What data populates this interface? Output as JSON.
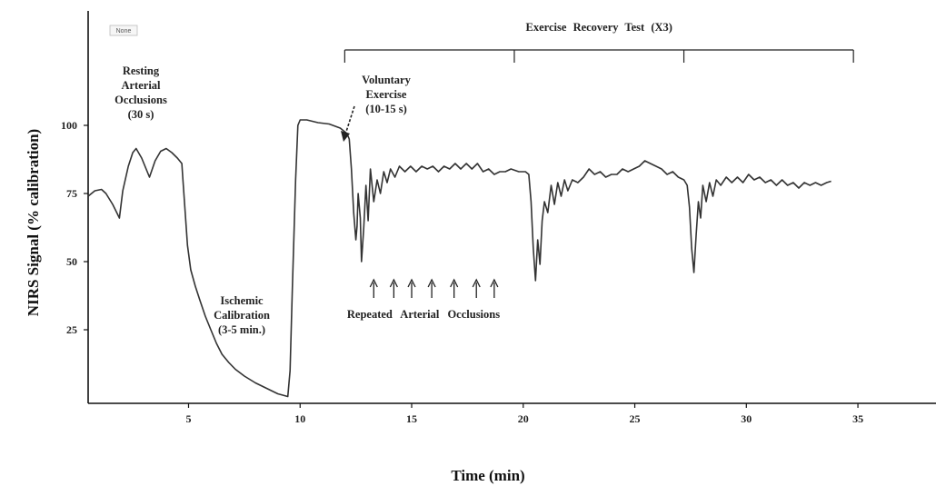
{
  "chart_data": {
    "type": "line",
    "xlabel": "Time (min)",
    "ylabel": "NIRS Signal (% calibration)",
    "x_ticks": [
      5,
      10,
      15,
      20,
      25,
      30,
      35
    ],
    "y_ticks": [
      25,
      50,
      75,
      100
    ],
    "xlim": [
      0.5,
      38.5
    ],
    "ylim": [
      -2,
      142
    ],
    "legend_box_text": "None",
    "series": [
      {
        "points": [
          [
            0.5,
            74
          ],
          [
            0.8,
            76
          ],
          [
            1.1,
            76.5
          ],
          [
            1.3,
            75
          ],
          [
            1.6,
            71
          ],
          [
            1.9,
            66
          ],
          [
            2.05,
            76
          ],
          [
            2.3,
            85
          ],
          [
            2.5,
            90
          ],
          [
            2.65,
            91.5
          ],
          [
            2.9,
            88
          ],
          [
            3.1,
            84
          ],
          [
            3.25,
            81
          ],
          [
            3.5,
            87
          ],
          [
            3.75,
            90.5
          ],
          [
            4.0,
            91.5
          ],
          [
            4.25,
            90
          ],
          [
            4.5,
            88
          ],
          [
            4.7,
            86
          ],
          [
            4.75,
            80
          ],
          [
            4.85,
            68
          ],
          [
            4.95,
            56
          ],
          [
            5.1,
            47
          ],
          [
            5.3,
            41
          ],
          [
            5.5,
            36
          ],
          [
            5.75,
            30
          ],
          [
            6.0,
            25
          ],
          [
            6.25,
            20
          ],
          [
            6.5,
            16
          ],
          [
            6.8,
            13
          ],
          [
            7.1,
            10.5
          ],
          [
            7.5,
            8
          ],
          [
            8.0,
            5.5
          ],
          [
            8.5,
            3.5
          ],
          [
            9.0,
            1.5
          ],
          [
            9.45,
            0.5
          ],
          [
            9.55,
            10
          ],
          [
            9.65,
            40
          ],
          [
            9.8,
            80
          ],
          [
            9.9,
            100
          ],
          [
            10.0,
            102
          ],
          [
            10.3,
            102
          ],
          [
            10.8,
            101
          ],
          [
            11.3,
            100.5
          ],
          [
            11.8,
            99
          ],
          [
            12.1,
            97
          ],
          [
            12.2,
            95
          ],
          [
            12.3,
            84
          ],
          [
            12.4,
            68
          ],
          [
            12.5,
            58
          ],
          [
            12.55,
            63
          ],
          [
            12.6,
            75
          ],
          [
            12.7,
            66
          ],
          [
            12.75,
            50
          ],
          [
            12.85,
            62
          ],
          [
            12.95,
            78
          ],
          [
            13.05,
            65
          ],
          [
            13.15,
            84
          ],
          [
            13.3,
            72
          ],
          [
            13.45,
            80
          ],
          [
            13.6,
            75
          ],
          [
            13.75,
            83
          ],
          [
            13.9,
            79
          ],
          [
            14.05,
            84
          ],
          [
            14.25,
            81
          ],
          [
            14.45,
            85
          ],
          [
            14.7,
            83
          ],
          [
            14.95,
            85
          ],
          [
            15.2,
            83
          ],
          [
            15.45,
            85
          ],
          [
            15.7,
            84
          ],
          [
            15.95,
            85
          ],
          [
            16.2,
            83
          ],
          [
            16.45,
            85
          ],
          [
            16.7,
            84
          ],
          [
            16.95,
            86
          ],
          [
            17.2,
            84
          ],
          [
            17.45,
            86
          ],
          [
            17.7,
            84
          ],
          [
            17.95,
            86
          ],
          [
            18.2,
            83
          ],
          [
            18.45,
            84
          ],
          [
            18.7,
            82
          ],
          [
            18.95,
            83
          ],
          [
            19.2,
            83
          ],
          [
            19.45,
            84
          ],
          [
            19.8,
            83
          ],
          [
            20.1,
            83
          ],
          [
            20.25,
            82
          ],
          [
            20.35,
            72
          ],
          [
            20.45,
            55
          ],
          [
            20.55,
            43
          ],
          [
            20.65,
            58
          ],
          [
            20.75,
            49
          ],
          [
            20.85,
            65
          ],
          [
            20.95,
            72
          ],
          [
            21.1,
            68
          ],
          [
            21.25,
            78
          ],
          [
            21.4,
            71
          ],
          [
            21.55,
            79
          ],
          [
            21.7,
            74
          ],
          [
            21.85,
            80
          ],
          [
            22.0,
            76
          ],
          [
            22.2,
            80
          ],
          [
            22.45,
            79
          ],
          [
            22.7,
            81
          ],
          [
            22.95,
            84
          ],
          [
            23.2,
            82
          ],
          [
            23.45,
            83
          ],
          [
            23.7,
            81
          ],
          [
            23.95,
            82
          ],
          [
            24.2,
            82
          ],
          [
            24.45,
            84
          ],
          [
            24.7,
            83
          ],
          [
            24.95,
            84
          ],
          [
            25.2,
            85
          ],
          [
            25.45,
            87
          ],
          [
            25.7,
            86
          ],
          [
            25.95,
            85
          ],
          [
            26.2,
            84
          ],
          [
            26.45,
            82
          ],
          [
            26.7,
            83
          ],
          [
            26.95,
            81
          ],
          [
            27.2,
            80
          ],
          [
            27.35,
            78
          ],
          [
            27.45,
            70
          ],
          [
            27.55,
            55
          ],
          [
            27.65,
            46
          ],
          [
            27.75,
            60
          ],
          [
            27.85,
            72
          ],
          [
            27.95,
            66
          ],
          [
            28.05,
            78
          ],
          [
            28.2,
            72
          ],
          [
            28.35,
            79
          ],
          [
            28.5,
            74
          ],
          [
            28.65,
            80
          ],
          [
            28.85,
            78
          ],
          [
            29.1,
            81
          ],
          [
            29.35,
            79
          ],
          [
            29.6,
            81
          ],
          [
            29.85,
            79
          ],
          [
            30.1,
            82
          ],
          [
            30.35,
            80
          ],
          [
            30.6,
            81
          ],
          [
            30.85,
            79
          ],
          [
            31.1,
            80
          ],
          [
            31.35,
            78
          ],
          [
            31.6,
            80
          ],
          [
            31.85,
            78
          ],
          [
            32.1,
            79
          ],
          [
            32.35,
            77
          ],
          [
            32.6,
            79
          ],
          [
            32.85,
            78
          ],
          [
            33.1,
            79
          ],
          [
            33.35,
            78
          ],
          [
            33.6,
            79
          ],
          [
            33.8,
            79.5
          ]
        ]
      }
    ],
    "annotations": {
      "resting": [
        "Resting",
        "Arterial",
        "Occlusions",
        "(30 s)"
      ],
      "ischemic": [
        "Ischemic",
        "Calibration",
        "(3-5 min.)"
      ],
      "voluntary": [
        "Voluntary",
        "Exercise",
        "(10-15 s)"
      ],
      "repeated": [
        "Repeated",
        "Arterial",
        "Occlusions"
      ],
      "exercise_recovery": "Exercise Recovery Test (X3)"
    },
    "bracket_x": [
      12.0,
      19.6,
      27.2,
      34.8
    ],
    "arrow_x": [
      13.3,
      14.2,
      15.0,
      15.9,
      16.9,
      17.9,
      18.7
    ]
  },
  "colors": {
    "line": "#333333",
    "axis": "#111111",
    "text": "#222222"
  }
}
